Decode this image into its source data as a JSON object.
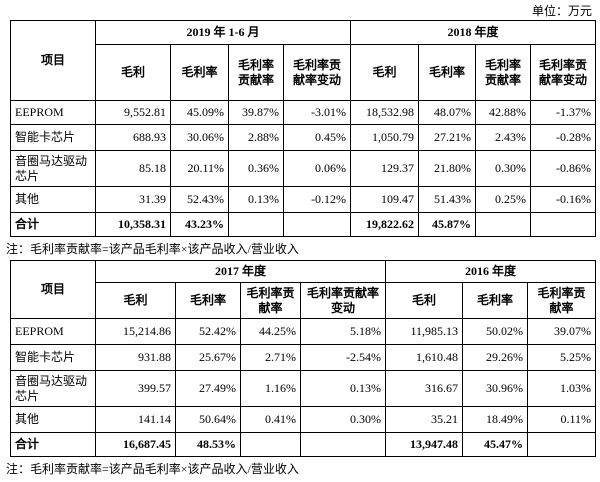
{
  "unit": "单位：万元",
  "tables": [
    {
      "item_header": "项目",
      "periods": [
        {
          "label": "2019 年 1-6 月",
          "columns": [
            "毛利",
            "毛利率",
            "毛利率贡献率",
            "毛利率贡献率变动"
          ]
        },
        {
          "label": "2018 年度",
          "columns": [
            "毛利",
            "毛利率",
            "毛利率贡献率",
            "毛利率贡献率变动"
          ]
        }
      ],
      "rows": [
        {
          "item": "EEPROM",
          "cells": [
            "9,552.81",
            "45.09%",
            "39.87%",
            "-3.01%",
            "18,532.98",
            "48.07%",
            "42.88%",
            "-1.37%"
          ]
        },
        {
          "item": "智能卡芯片",
          "cells": [
            "688.93",
            "30.06%",
            "2.88%",
            "0.45%",
            "1,050.79",
            "27.21%",
            "2.43%",
            "-0.28%"
          ]
        },
        {
          "item": "音圈马达驱动芯片",
          "cells": [
            "85.18",
            "20.11%",
            "0.36%",
            "0.06%",
            "129.37",
            "21.80%",
            "0.30%",
            "-0.86%"
          ]
        },
        {
          "item": "其他",
          "cells": [
            "31.39",
            "52.43%",
            "0.13%",
            "-0.12%",
            "109.47",
            "51.43%",
            "0.25%",
            "-0.16%"
          ]
        },
        {
          "item": "合计",
          "cells": [
            "10,358.31",
            "43.23%",
            null,
            null,
            "19,822.62",
            "45.87%",
            null,
            null
          ]
        }
      ],
      "note": "注：毛利率贡献率=该产品毛利率×该产品收入/营业收入"
    },
    {
      "item_header": "项目",
      "periods": [
        {
          "label": "2017 年度",
          "columns": [
            "毛利",
            "毛利率",
            "毛利率贡献率",
            "毛利率贡献率变动"
          ]
        },
        {
          "label": "2016 年度",
          "columns": [
            "毛利",
            "毛利率",
            "毛利率贡献率"
          ]
        }
      ],
      "rows": [
        {
          "item": "EEPROM",
          "cells": [
            "15,214.86",
            "52.42%",
            "44.25%",
            "5.18%",
            "11,985.13",
            "50.02%",
            "39.07%"
          ]
        },
        {
          "item": "智能卡芯片",
          "cells": [
            "931.88",
            "25.67%",
            "2.71%",
            "-2.54%",
            "1,610.48",
            "29.26%",
            "5.25%"
          ]
        },
        {
          "item": "音圈马达驱动芯片",
          "cells": [
            "399.57",
            "27.49%",
            "1.16%",
            "0.13%",
            "316.67",
            "30.96%",
            "1.03%"
          ]
        },
        {
          "item": "其他",
          "cells": [
            "141.14",
            "50.64%",
            "0.41%",
            "0.30%",
            "35.21",
            "18.49%",
            "0.11%"
          ]
        },
        {
          "item": "合计",
          "cells": [
            "16,687.45",
            "48.53%",
            null,
            null,
            "13,947.48",
            "45.47%",
            null
          ]
        }
      ],
      "note": "注：毛利率贡献率=该产品毛利率×该产品收入/营业收入"
    }
  ]
}
